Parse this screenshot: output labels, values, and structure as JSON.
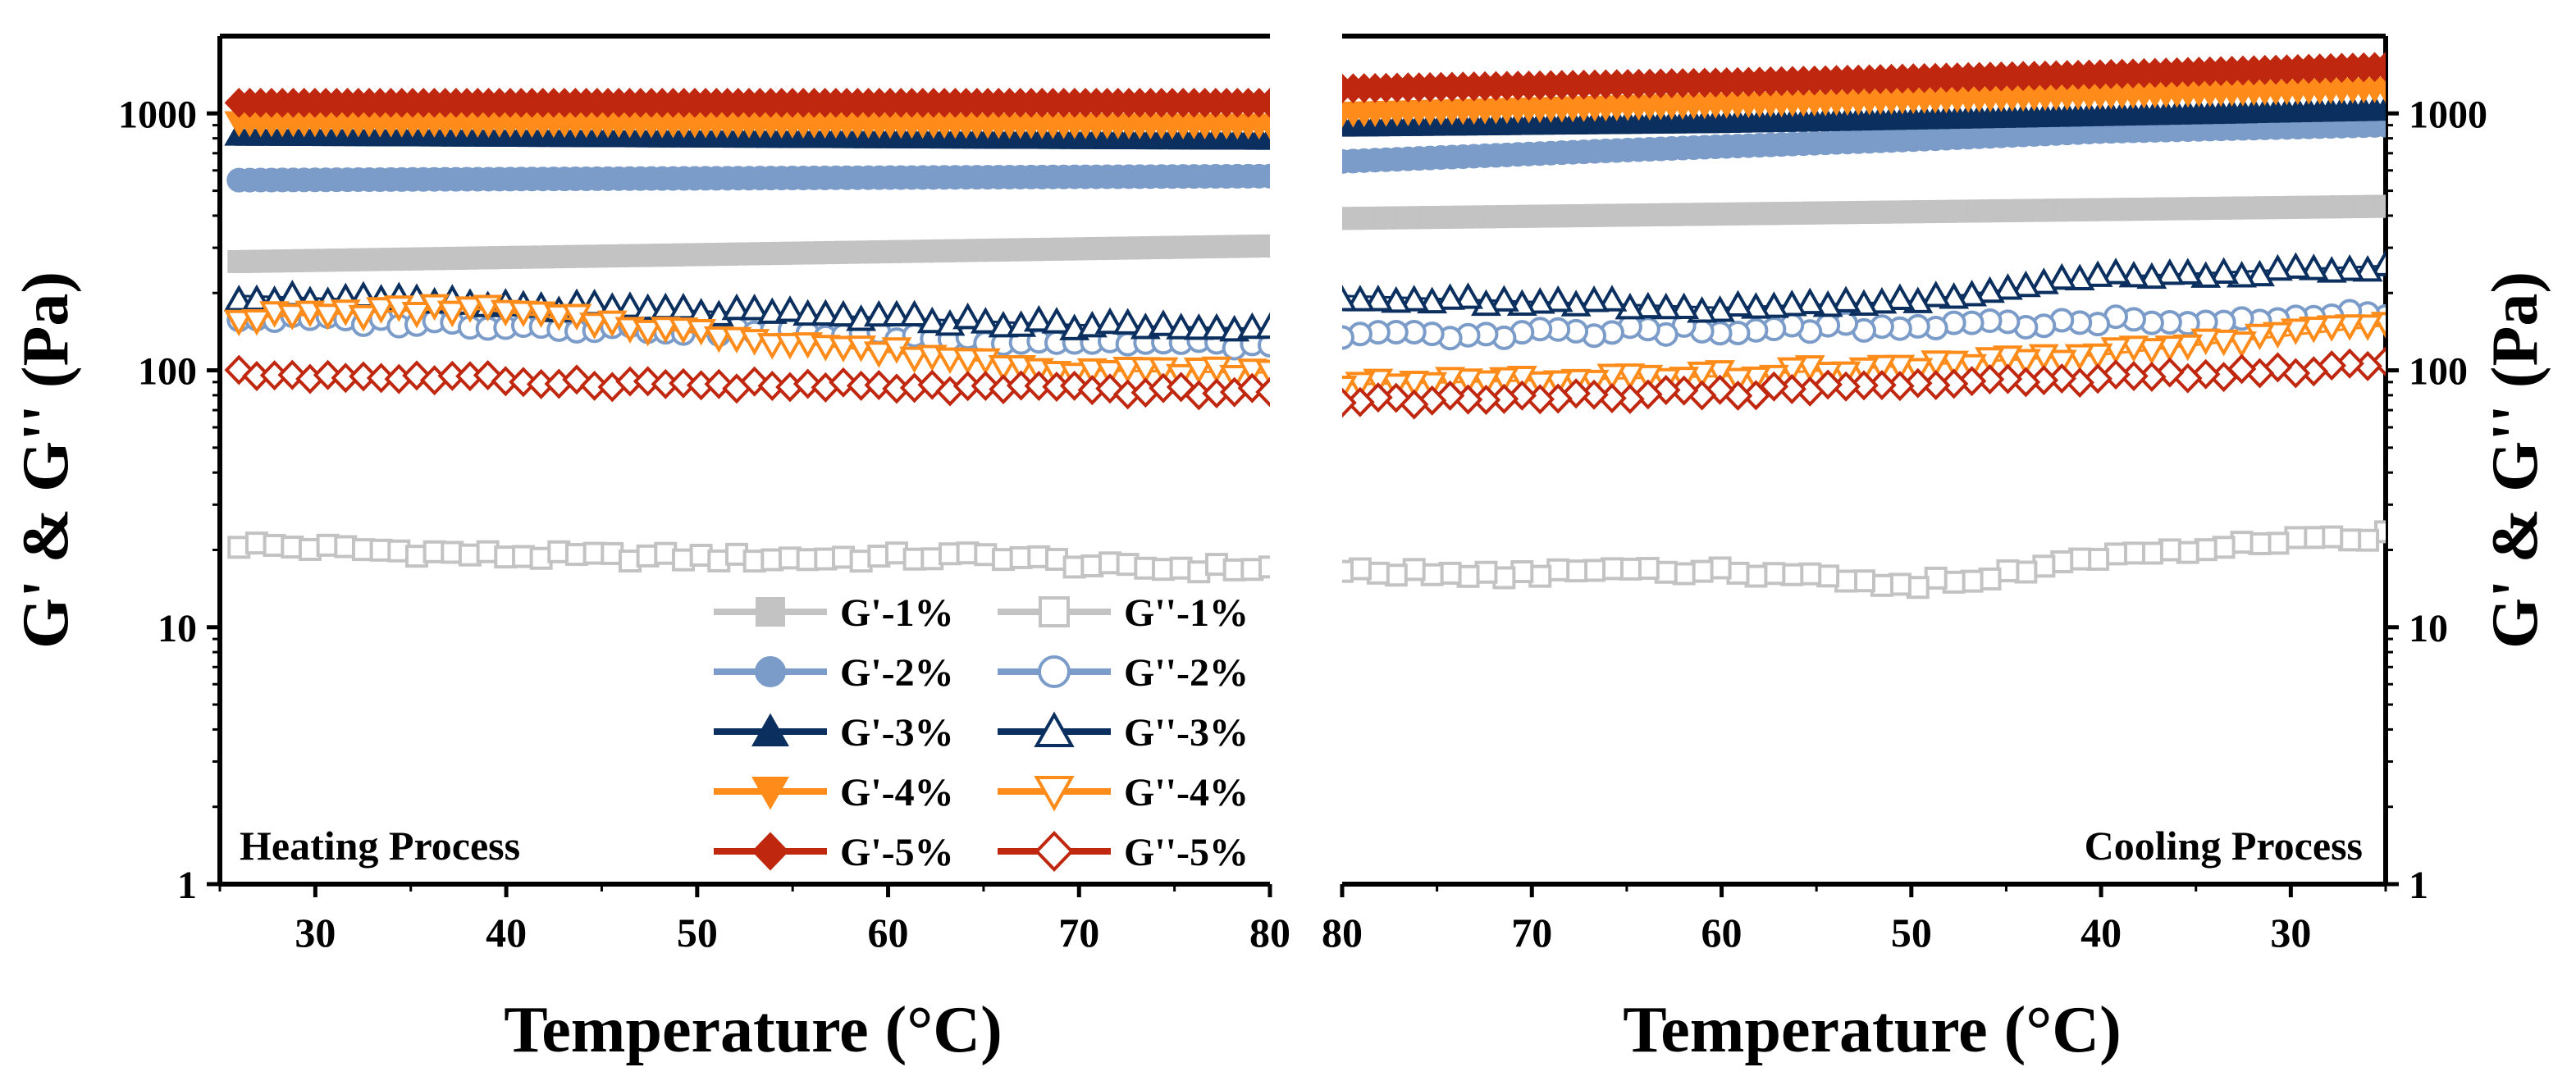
{
  "chart_data": {
    "type": "scatter",
    "yscale": "log",
    "ylabel": "G' & G'' (Pa)",
    "yticks": [
      1,
      10,
      100,
      1000
    ],
    "ytick_labels": [
      "1",
      "10",
      "100",
      "1000"
    ],
    "ylim": [
      1,
      2000
    ],
    "panels": [
      {
        "id": "heating",
        "title": "Heating Process",
        "xlabel": "Temperature (°C)",
        "xlim": [
          25,
          80
        ],
        "xticks": [
          30,
          40,
          50,
          60,
          70,
          80
        ],
        "xtick_labels": [
          "30",
          "40",
          "50",
          "60",
          "70",
          "80"
        ],
        "series": [
          {
            "name": "G'-1%",
            "color": "#c3c3c3",
            "marker": "square",
            "filled": true,
            "x": [
              26,
              80
            ],
            "y": [
              265,
              305
            ]
          },
          {
            "name": "G''-1%",
            "color": "#c3c3c3",
            "marker": "square",
            "filled": false,
            "x": [
              26,
              40,
              55,
              66,
              72,
              80
            ],
            "y": [
              21,
              19,
              18.5,
              19,
              17,
              17
            ]
          },
          {
            "name": "G'-2%",
            "color": "#7b9cc9",
            "marker": "circle",
            "filled": true,
            "x": [
              26,
              80
            ],
            "y": [
              550,
              570
            ]
          },
          {
            "name": "G''-2%",
            "color": "#7b9cc9",
            "marker": "circle",
            "filled": false,
            "x": [
              26,
              40,
              55,
              65,
              80
            ],
            "y": [
              160,
              150,
              140,
              132,
              125
            ]
          },
          {
            "name": "G'-3%",
            "color": "#0b2f5e",
            "marker": "triangle-up",
            "filled": true,
            "x": [
              26,
              80
            ],
            "y": [
              830,
              800
            ]
          },
          {
            "name": "G''-3%",
            "color": "#0b2f5e",
            "marker": "triangle-up",
            "filled": false,
            "x": [
              26,
              40,
              55,
              70,
              80
            ],
            "y": [
              195,
              180,
              165,
              150,
              145
            ]
          },
          {
            "name": "G'-4%",
            "color": "#ff8c1a",
            "marker": "triangle-down",
            "filled": true,
            "x": [
              26,
              80
            ],
            "y": [
              920,
              900
            ]
          },
          {
            "name": "G''-4%",
            "color": "#ff8c1a",
            "marker": "triangle-down",
            "filled": false,
            "x": [
              26,
              38,
              50,
              60,
              70,
              80
            ],
            "y": [
              160,
              175,
              140,
              118,
              100,
              98
            ]
          },
          {
            "name": "G'-5%",
            "color": "#c0270f",
            "marker": "diamond",
            "filled": true,
            "x": [
              26,
              80
            ],
            "y": [
              1100,
              1100
            ]
          },
          {
            "name": "G''-5%",
            "color": "#c0270f",
            "marker": "diamond",
            "filled": false,
            "x": [
              26,
              50,
              80
            ],
            "y": [
              97,
              88,
              82
            ]
          }
        ]
      },
      {
        "id": "cooling",
        "title": "Cooling Process",
        "xlabel": "Temperature (°C)",
        "xlim": [
          80,
          25
        ],
        "xticks": [
          80,
          70,
          60,
          50,
          40,
          30
        ],
        "xtick_labels": [
          "80",
          "70",
          "60",
          "50",
          "40",
          "30"
        ],
        "series": [
          {
            "name": "G'-1%",
            "color": "#c3c3c3",
            "marker": "square",
            "filled": true,
            "x": [
              80,
              25
            ],
            "y": [
              390,
              435
            ]
          },
          {
            "name": "G''-1%",
            "color": "#c3c3c3",
            "marker": "square",
            "filled": false,
            "x": [
              80,
              73,
              60,
              50,
              40,
              25
            ],
            "y": [
              17,
              16,
              16.5,
              14.5,
              18.5,
              23
            ]
          },
          {
            "name": "G'-2%",
            "color": "#7b9cc9",
            "marker": "circle",
            "filled": true,
            "x": [
              80,
              65,
              50,
              40,
              25
            ],
            "y": [
              650,
              720,
              790,
              850,
              900
            ]
          },
          {
            "name": "G''-2%",
            "color": "#7b9cc9",
            "marker": "circle",
            "filled": false,
            "x": [
              80,
              60,
              40,
              25
            ],
            "y": [
              135,
              145,
              155,
              165
            ]
          },
          {
            "name": "G'-3%",
            "color": "#0b2f5e",
            "marker": "triangle-up",
            "filled": true,
            "x": [
              80,
              60,
              40,
              25
            ],
            "y": [
              900,
              930,
              990,
              1040
            ]
          },
          {
            "name": "G''-3%",
            "color": "#0b2f5e",
            "marker": "triangle-up",
            "filled": false,
            "x": [
              80,
              60,
              50,
              40,
              25
            ],
            "y": [
              195,
              175,
              185,
              230,
              255
            ]
          },
          {
            "name": "G'-4%",
            "color": "#ff8c1a",
            "marker": "triangle-down",
            "filled": true,
            "x": [
              80,
              25
            ],
            "y": [
              1000,
              1250
            ]
          },
          {
            "name": "G''-4%",
            "color": "#ff8c1a",
            "marker": "triangle-down",
            "filled": false,
            "x": [
              80,
              60,
              40,
              25
            ],
            "y": [
              88,
              95,
              115,
              150
            ]
          },
          {
            "name": "G'-5%",
            "color": "#c0270f",
            "marker": "diamond",
            "filled": true,
            "x": [
              80,
              60,
              40,
              25
            ],
            "y": [
              1250,
              1320,
              1420,
              1520
            ]
          },
          {
            "name": "G''-5%",
            "color": "#c0270f",
            "marker": "diamond",
            "filled": false,
            "x": [
              80,
              60,
              40,
              25
            ],
            "y": [
              75,
              82,
              92,
              105
            ]
          }
        ]
      }
    ],
    "legend": {
      "placement": "lower-right of heating panel",
      "columns": 2,
      "entries": [
        "G'-1%",
        "G''-1%",
        "G'-2%",
        "G''-2%",
        "G'-3%",
        "G''-3%",
        "G'-4%",
        "G''-4%",
        "G'-5%",
        "G''-5%"
      ]
    }
  }
}
